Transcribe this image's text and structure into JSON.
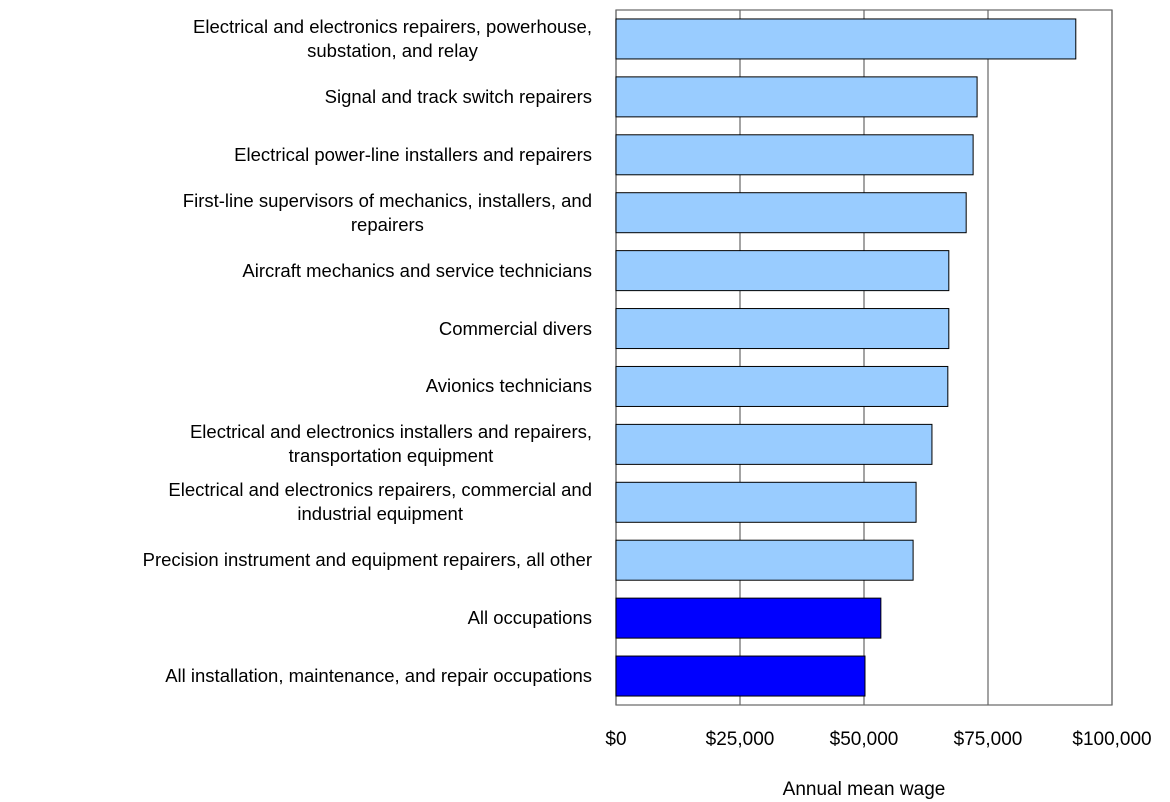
{
  "chart_data": {
    "type": "barh",
    "categories": [
      [
        "Electrical and electronics repairers, powerhouse,",
        "substation, and relay"
      ],
      [
        "Signal and track switch repairers"
      ],
      [
        "Electrical power-line installers and repairers"
      ],
      [
        "First-line supervisors of mechanics, installers, and",
        "repairers"
      ],
      [
        "Aircraft mechanics and service technicians"
      ],
      [
        "Commercial divers"
      ],
      [
        "Avionics technicians"
      ],
      [
        "Electrical and electronics installers and repairers,",
        "transportation equipment"
      ],
      [
        "Electrical and electronics repairers, commercial and",
        "industrial equipment"
      ],
      [
        "Precision instrument and equipment repairers, all other"
      ],
      [
        "All occupations"
      ],
      [
        "All installation, maintenance, and repair occupations"
      ]
    ],
    "values": [
      92700,
      72800,
      72000,
      70600,
      67100,
      67100,
      66900,
      63700,
      60500,
      59900,
      53400,
      50200
    ],
    "colors": [
      "#99ccff",
      "#99ccff",
      "#99ccff",
      "#99ccff",
      "#99ccff",
      "#99ccff",
      "#99ccff",
      "#99ccff",
      "#99ccff",
      "#99ccff",
      "#0000ff",
      "#0000ff"
    ],
    "xlabel": "Annual mean wage",
    "xlim": [
      0,
      100000
    ],
    "xticks": [
      {
        "value": 0,
        "label": "$0"
      },
      {
        "value": 25000,
        "label": "$25,000"
      },
      {
        "value": 50000,
        "label": "$50,000"
      },
      {
        "value": 75000,
        "label": "$75,000"
      },
      {
        "value": 100000,
        "label": "$100,000"
      }
    ],
    "grid": true
  }
}
